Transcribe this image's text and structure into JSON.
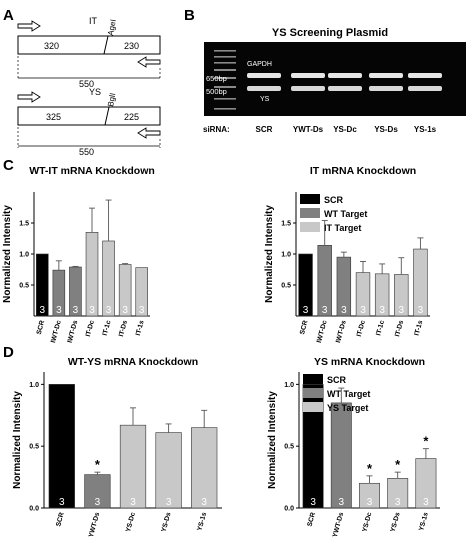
{
  "panels": {
    "A": {
      "letter": "A",
      "construct_it": {
        "name": "IT",
        "site": "AgeI",
        "left_len": "320",
        "right_len": "230",
        "total": "550"
      },
      "construct_ys": {
        "name": "YS",
        "site": "BglI",
        "left_len": "325",
        "right_len": "225",
        "total": "550"
      }
    },
    "B": {
      "letter": "B",
      "title": "YS Screening Plasmid",
      "labels": {
        "gapdh": "GAPDH",
        "ys": "YS",
        "bp650": "650bp",
        "bp500": "500bp",
        "sirna": "siRNA:"
      },
      "lanes": [
        "SCR",
        "YWT-Ds",
        "YS-Dc",
        "YS-Ds",
        "YS-1s"
      ]
    },
    "C": {
      "letter": "C"
    },
    "D": {
      "letter": "D"
    }
  },
  "chart_data": [
    {
      "type": "bar",
      "title": "WT-IT mRNA Knockdown",
      "ylabel": "Normalized Intensity",
      "ylim": [
        0,
        2
      ],
      "yticks": [
        "0.5",
        "1.0",
        "1.5"
      ],
      "categories": [
        "SCR",
        "IWT-Dc",
        "IWT-Ds",
        "IT-Dc",
        "IT-1c",
        "IT-Ds",
        "IT-1s"
      ],
      "values": [
        1.0,
        0.74,
        0.79,
        1.35,
        1.21,
        0.83,
        0.78
      ],
      "errors": [
        0,
        0.15,
        0.01,
        0.39,
        0.66,
        0.015,
        0
      ],
      "colors": [
        "#000000",
        "#808080",
        "#808080",
        "#c8c8c8",
        "#c8c8c8",
        "#c8c8c8",
        "#c8c8c8"
      ],
      "n": [
        "3",
        "3",
        "3",
        "3",
        "3",
        "3",
        "3"
      ],
      "stars": [
        false,
        false,
        false,
        false,
        false,
        false,
        false
      ]
    },
    {
      "type": "bar",
      "title": "IT mRNA Knockdown",
      "ylabel": "Normalized Intensity",
      "ylim": [
        0,
        2
      ],
      "yticks": [
        "0.5",
        "1.0",
        "1.5"
      ],
      "categories": [
        "SCR",
        "IWT-Dc",
        "IWT-Ds",
        "IT-Dc",
        "IT-1c",
        "IT-Ds",
        "IT-1s"
      ],
      "values": [
        1.0,
        1.14,
        0.95,
        0.7,
        0.68,
        0.67,
        1.08
      ],
      "errors": [
        0,
        0.4,
        0.08,
        0.18,
        0.16,
        0.27,
        0.18
      ],
      "colors": [
        "#000000",
        "#808080",
        "#808080",
        "#c8c8c8",
        "#c8c8c8",
        "#c8c8c8",
        "#c8c8c8"
      ],
      "n": [
        "3",
        "3",
        "3",
        "3",
        "3",
        "3",
        "3"
      ],
      "stars": [
        false,
        false,
        false,
        false,
        false,
        false,
        false
      ],
      "legend": [
        {
          "name": "SCR",
          "color": "#000000"
        },
        {
          "name": "WT Target",
          "color": "#808080"
        },
        {
          "name": "IT Target",
          "color": "#c8c8c8"
        }
      ]
    },
    {
      "type": "bar",
      "title": "WT-YS mRNA Knockdown",
      "ylabel": "Normalized Intensity",
      "ylim": [
        0,
        1.1
      ],
      "yticks": [
        "0.0",
        "0.5",
        "1.0"
      ],
      "categories": [
        "SCR",
        "YWT-Ds",
        "YS-Dc",
        "YS-Ds",
        "YS-1s"
      ],
      "values": [
        1.0,
        0.27,
        0.67,
        0.61,
        0.65
      ],
      "errors": [
        0,
        0.02,
        0.14,
        0.07,
        0.14
      ],
      "colors": [
        "#000000",
        "#808080",
        "#c8c8c8",
        "#c8c8c8",
        "#c8c8c8"
      ],
      "n": [
        "3",
        "3",
        "3",
        "3",
        "3"
      ],
      "stars": [
        false,
        true,
        false,
        false,
        false
      ],
      "star_symbol": "*"
    },
    {
      "type": "bar",
      "title": "YS mRNA Knockdown",
      "ylabel": "Normalized Intensity",
      "ylim": [
        0,
        1.1
      ],
      "yticks": [
        "0.0",
        "0.5",
        "1.0"
      ],
      "categories": [
        "SCR",
        "YWT-Ds",
        "YS-Dc",
        "YS-Ds",
        "YS-1s"
      ],
      "values": [
        1.0,
        0.85,
        0.2,
        0.24,
        0.4
      ],
      "errors": [
        0,
        0.12,
        0.06,
        0.05,
        0.08
      ],
      "colors": [
        "#000000",
        "#808080",
        "#c8c8c8",
        "#c8c8c8",
        "#c8c8c8"
      ],
      "n": [
        "3",
        "3",
        "3",
        "3",
        "3"
      ],
      "stars": [
        false,
        false,
        true,
        true,
        true
      ],
      "star_symbol": "*",
      "legend": [
        {
          "name": "SCR",
          "color": "#000000"
        },
        {
          "name": "WT Target",
          "color": "#808080"
        },
        {
          "name": "YS Target",
          "color": "#c8c8c8"
        }
      ]
    }
  ]
}
